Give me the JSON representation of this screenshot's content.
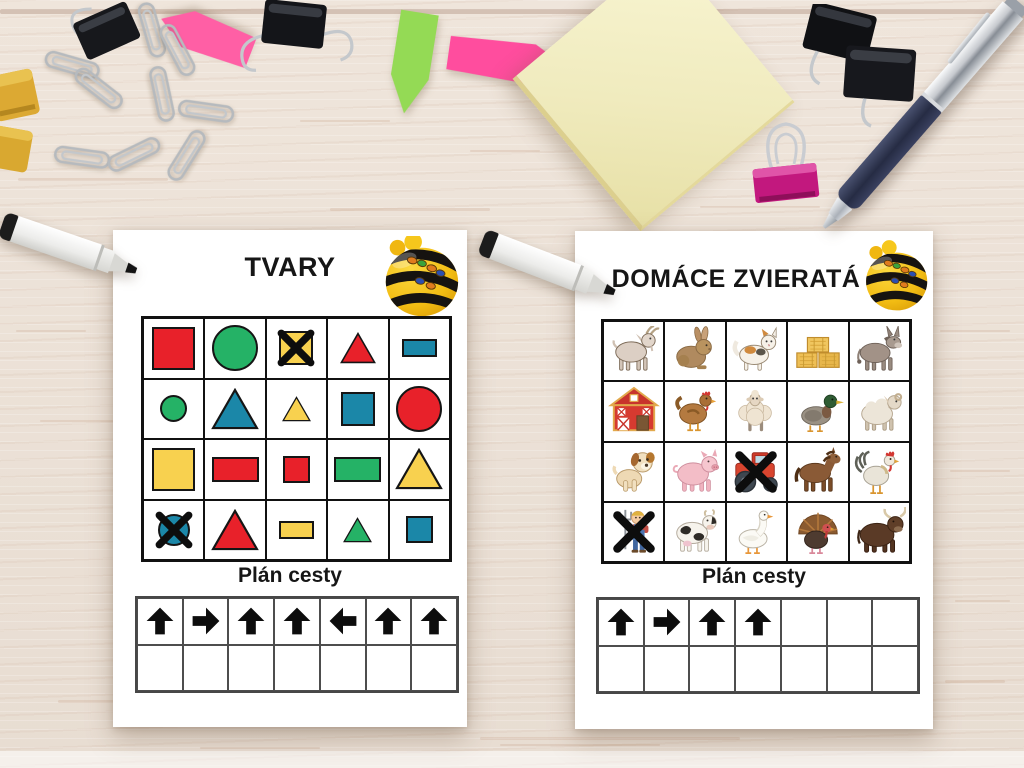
{
  "colors": {
    "red": "#e8212a",
    "green": "#25b266",
    "teal": "#1b87a8",
    "yellow": "#f8d14f",
    "cross": "#0d0d0d",
    "paper": "#ffffff"
  },
  "worksheets": [
    {
      "id": "tvary",
      "title": "TVARY",
      "mascot": "bee-bot-icon",
      "plan_title": "Plán cesty",
      "grid": {
        "rows": 4,
        "cols": 5,
        "cells": [
          {
            "shape": "square",
            "color": "red",
            "size": "lg"
          },
          {
            "shape": "circle",
            "color": "green",
            "size": "lg"
          },
          {
            "shape": "square",
            "color": "yellow",
            "size": "md",
            "crossed": true
          },
          {
            "shape": "triangle",
            "color": "red",
            "size": "md"
          },
          {
            "shape": "rect",
            "color": "teal",
            "size": "sm"
          },
          {
            "shape": "circle",
            "color": "green",
            "size": "sm"
          },
          {
            "shape": "triangle",
            "color": "teal",
            "size": "lg"
          },
          {
            "shape": "triangle",
            "color": "yellow",
            "size": "sm"
          },
          {
            "shape": "square",
            "color": "teal",
            "size": "md"
          },
          {
            "shape": "circle",
            "color": "red",
            "size": "lg"
          },
          {
            "shape": "square",
            "color": "yellow",
            "size": "lg"
          },
          {
            "shape": "rect",
            "color": "red",
            "size": "lg"
          },
          {
            "shape": "square",
            "color": "red",
            "size": "sm"
          },
          {
            "shape": "rect",
            "color": "green",
            "size": "lg"
          },
          {
            "shape": "triangle",
            "color": "yellow",
            "size": "lg"
          },
          {
            "shape": "circle",
            "color": "teal",
            "size": "md",
            "crossed": true
          },
          {
            "shape": "triangle",
            "color": "red",
            "size": "lg"
          },
          {
            "shape": "rect",
            "color": "yellow",
            "size": "sm"
          },
          {
            "shape": "triangle",
            "color": "green",
            "size": "sm"
          },
          {
            "shape": "square",
            "color": "teal",
            "size": "sm"
          }
        ]
      },
      "plan": {
        "columns": 7,
        "rows": 2,
        "arrows": [
          "up",
          "right",
          "up",
          "up",
          "left",
          "up",
          "up"
        ]
      }
    },
    {
      "id": "domace-zvierata",
      "title": "DOMÁCE ZVIERATÁ",
      "mascot": "bee-bot-icon",
      "plan_title": "Plán cesty",
      "grid": {
        "rows": 4,
        "cols": 5,
        "cells": [
          {
            "icon": "goat"
          },
          {
            "icon": "rabbit"
          },
          {
            "icon": "cat"
          },
          {
            "icon": "hay"
          },
          {
            "icon": "donkey"
          },
          {
            "icon": "barn"
          },
          {
            "icon": "hen"
          },
          {
            "icon": "sheep"
          },
          {
            "icon": "duck"
          },
          {
            "icon": "ram"
          },
          {
            "icon": "dog"
          },
          {
            "icon": "pig"
          },
          {
            "icon": "tractor",
            "crossed": true
          },
          {
            "icon": "horse"
          },
          {
            "icon": "rooster"
          },
          {
            "icon": "farmer",
            "crossed": true
          },
          {
            "icon": "cow"
          },
          {
            "icon": "goose"
          },
          {
            "icon": "turkey"
          },
          {
            "icon": "bull"
          }
        ]
      },
      "plan": {
        "columns": 7,
        "rows": 2,
        "arrows": [
          "up",
          "right",
          "up",
          "up"
        ]
      }
    }
  ],
  "decorations": [
    {
      "name": "white-marker-left"
    },
    {
      "name": "white-marker-right"
    },
    {
      "name": "ballpoint-pen"
    },
    {
      "name": "yellow-sticky-note"
    },
    {
      "name": "green-arrow-flag"
    },
    {
      "name": "pink-arrow-flag-right"
    },
    {
      "name": "pink-arrow-flag-left"
    },
    {
      "name": "paper-clips"
    },
    {
      "name": "yellow-binder-clip"
    },
    {
      "name": "black-binder-clip-left"
    },
    {
      "name": "black-binder-clip-center"
    },
    {
      "name": "black-binder-clips-right"
    },
    {
      "name": "magenta-binder-clip"
    }
  ]
}
